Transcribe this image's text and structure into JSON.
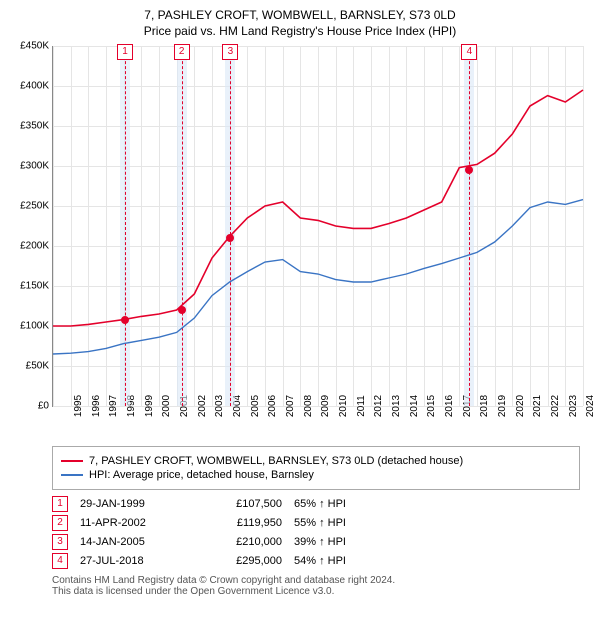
{
  "title_line1": "7, PASHLEY CROFT, WOMBWELL, BARNSLEY, S73 0LD",
  "title_line2": "Price paid vs. HM Land Registry's House Price Index (HPI)",
  "y_axis": {
    "min": 0,
    "max": 450000,
    "step": 50000,
    "prefix": "£",
    "suffix": "K",
    "divisor": 1000
  },
  "x_axis": {
    "min": 1995,
    "max": 2025,
    "step": 1
  },
  "chart": {
    "grid_color": "#e5e5e5",
    "axis_color": "#888888",
    "band_color": "#dbe8f6"
  },
  "series": [
    {
      "name": "7, PASHLEY CROFT, WOMBWELL, BARNSLEY, S73 0LD (detached house)",
      "color": "#e4002b",
      "width": 1.6,
      "points": [
        [
          1995,
          100000
        ],
        [
          1996,
          100000
        ],
        [
          1997,
          102000
        ],
        [
          1998,
          105000
        ],
        [
          1999,
          108000
        ],
        [
          2000,
          112000
        ],
        [
          2001,
          115000
        ],
        [
          2002,
          120000
        ],
        [
          2003,
          140000
        ],
        [
          2004,
          185000
        ],
        [
          2005,
          212000
        ],
        [
          2006,
          235000
        ],
        [
          2007,
          250000
        ],
        [
          2008,
          255000
        ],
        [
          2009,
          235000
        ],
        [
          2010,
          232000
        ],
        [
          2011,
          225000
        ],
        [
          2012,
          222000
        ],
        [
          2013,
          222000
        ],
        [
          2014,
          228000
        ],
        [
          2015,
          235000
        ],
        [
          2016,
          245000
        ],
        [
          2017,
          255000
        ],
        [
          2018,
          298000
        ],
        [
          2019,
          302000
        ],
        [
          2020,
          316000
        ],
        [
          2021,
          340000
        ],
        [
          2022,
          375000
        ],
        [
          2023,
          388000
        ],
        [
          2024,
          380000
        ],
        [
          2025,
          395000
        ]
      ]
    },
    {
      "name": "HPI: Average price, detached house, Barnsley",
      "color": "#3a74c4",
      "width": 1.4,
      "points": [
        [
          1995,
          65000
        ],
        [
          1996,
          66000
        ],
        [
          1997,
          68000
        ],
        [
          1998,
          72000
        ],
        [
          1999,
          78000
        ],
        [
          2000,
          82000
        ],
        [
          2001,
          86000
        ],
        [
          2002,
          92000
        ],
        [
          2003,
          110000
        ],
        [
          2004,
          138000
        ],
        [
          2005,
          155000
        ],
        [
          2006,
          168000
        ],
        [
          2007,
          180000
        ],
        [
          2008,
          183000
        ],
        [
          2009,
          168000
        ],
        [
          2010,
          165000
        ],
        [
          2011,
          158000
        ],
        [
          2012,
          155000
        ],
        [
          2013,
          155000
        ],
        [
          2014,
          160000
        ],
        [
          2015,
          165000
        ],
        [
          2016,
          172000
        ],
        [
          2017,
          178000
        ],
        [
          2018,
          185000
        ],
        [
          2019,
          192000
        ],
        [
          2020,
          205000
        ],
        [
          2021,
          225000
        ],
        [
          2022,
          248000
        ],
        [
          2023,
          255000
        ],
        [
          2024,
          252000
        ],
        [
          2025,
          258000
        ]
      ]
    }
  ],
  "markers": [
    {
      "num": "1",
      "color": "#e4002b",
      "year": 1999.08,
      "price": 107500,
      "date": "29-JAN-1999",
      "pct": "65% ↑ HPI"
    },
    {
      "num": "2",
      "color": "#e4002b",
      "year": 2002.28,
      "price": 119950,
      "date": "11-APR-2002",
      "pct": "55% ↑ HPI"
    },
    {
      "num": "3",
      "color": "#e4002b",
      "year": 2005.04,
      "price": 210000,
      "date": "14-JAN-2005",
      "pct": "39% ↑ HPI"
    },
    {
      "num": "4",
      "color": "#e4002b",
      "year": 2018.57,
      "price": 295000,
      "date": "27-JUL-2018",
      "pct": "54% ↑ HPI"
    }
  ],
  "footer": {
    "line1": "Contains HM Land Registry data © Crown copyright and database right 2024.",
    "line2": "This data is licensed under the Open Government Licence v3.0."
  },
  "price_prefix": "£"
}
